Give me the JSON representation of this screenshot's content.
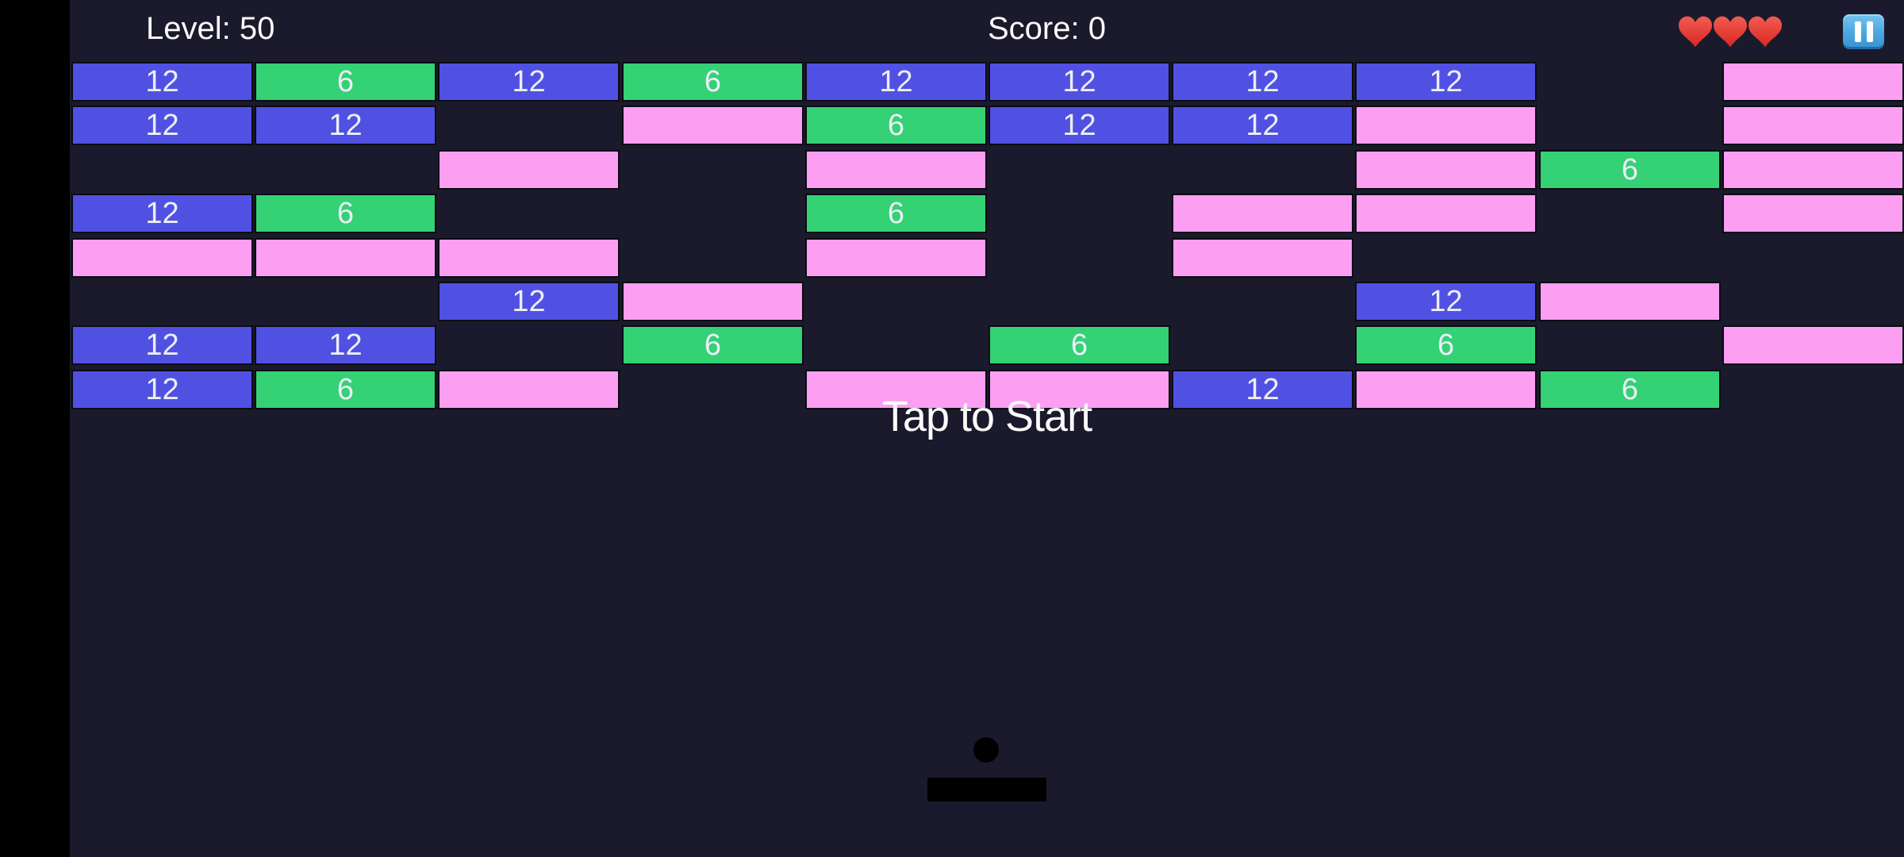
{
  "header": {
    "level_label": "Level: 50",
    "score_label": "Score: 0",
    "lives_count": 3
  },
  "overlay": {
    "tap_to_start": "Tap to Start"
  },
  "colors": {
    "background": "#1b1a2c",
    "letterbox": "#000000",
    "brick_blue": "#5051e2",
    "brick_green": "#34d175",
    "brick_pink": "#fc9ff3",
    "brick_border": "#0b0b14",
    "text": "#fafafa",
    "ball": "#000000",
    "paddle": "#000000",
    "heart_red_top": "#f25c50",
    "heart_red_bottom": "#d92722",
    "pause_blue": "#4aa6e0"
  },
  "brick_values": {
    "blue": "12",
    "green": "6",
    "pink": ""
  },
  "grid": {
    "rows": 8,
    "cols": 10,
    "cells": [
      [
        "blue",
        "green",
        "blue",
        "green",
        "blue",
        "blue",
        "blue",
        "blue",
        null,
        "pink"
      ],
      [
        "blue",
        "blue",
        null,
        "pink",
        "green",
        "blue",
        "blue",
        "pink",
        null,
        "pink"
      ],
      [
        null,
        null,
        "pink",
        null,
        "pink",
        null,
        null,
        "pink",
        "green",
        "pink"
      ],
      [
        "blue",
        "green",
        null,
        null,
        "green",
        null,
        "pink",
        "pink",
        null,
        "pink"
      ],
      [
        "pink",
        "pink",
        "pink",
        null,
        "pink",
        null,
        "pink",
        null,
        null,
        null
      ],
      [
        null,
        null,
        "blue",
        "pink",
        null,
        null,
        null,
        "blue",
        "pink",
        null
      ],
      [
        "blue",
        "blue",
        null,
        "green",
        null,
        "green",
        null,
        "green",
        null,
        "pink"
      ],
      [
        "blue",
        "green",
        "pink",
        null,
        "pink",
        "pink",
        "blue",
        "pink",
        "green",
        null
      ]
    ]
  }
}
